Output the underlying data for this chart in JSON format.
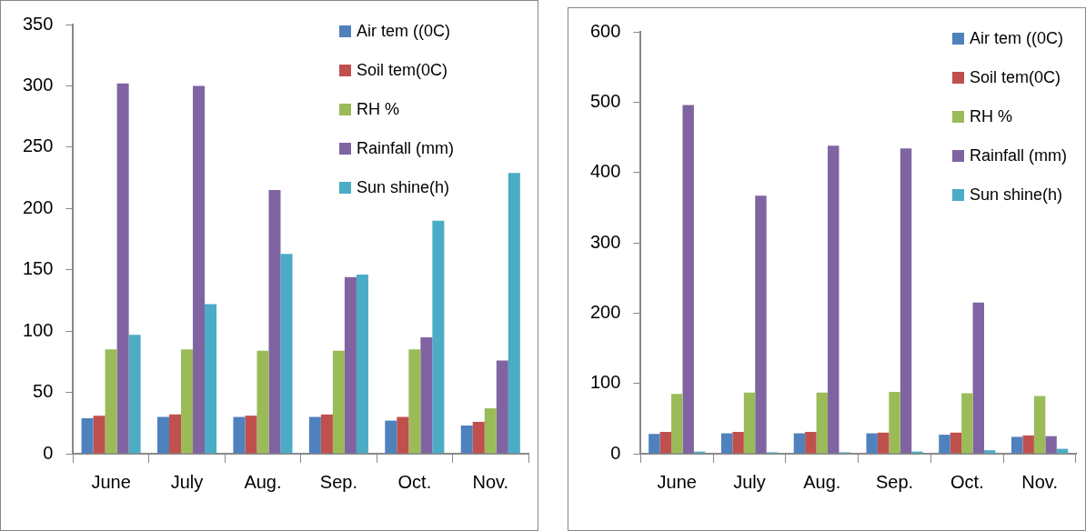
{
  "chart_data": [
    {
      "type": "bar",
      "categories": [
        "June",
        "July",
        "Aug.",
        "Sep.",
        "Oct.",
        "Nov."
      ],
      "ylim": [
        0,
        350
      ],
      "yticks": [
        0,
        50,
        100,
        150,
        200,
        250,
        300,
        350
      ],
      "grid": false,
      "legend": "top right",
      "series": [
        {
          "name": "Air tem ((0C)",
          "color": "#4f81bd",
          "values": [
            29,
            30,
            30,
            30,
            27,
            23
          ]
        },
        {
          "name": "Soil tem(0C)",
          "color": "#c0504d",
          "values": [
            31,
            32,
            31,
            32,
            30,
            26
          ]
        },
        {
          "name": "RH %",
          "color": "#9bbb59",
          "values": [
            85,
            85,
            84,
            84,
            85,
            37
          ]
        },
        {
          "name": "Rainfall (mm)",
          "color": "#8064a2",
          "values": [
            302,
            300,
            215,
            144,
            95,
            76
          ]
        },
        {
          "name": "Sun shine(h)",
          "color": "#4bacc6",
          "values": [
            97,
            122,
            163,
            146,
            190,
            229
          ]
        }
      ]
    },
    {
      "type": "bar",
      "categories": [
        "June",
        "July",
        "Aug.",
        "Sep.",
        "Oct.",
        "Nov."
      ],
      "ylim": [
        0,
        600
      ],
      "yticks": [
        0,
        100,
        200,
        300,
        400,
        500,
        600
      ],
      "grid": false,
      "legend": "top right",
      "series": [
        {
          "name": "Air tem ((0C)",
          "color": "#4f81bd",
          "values": [
            28,
            29,
            29,
            29,
            27,
            24
          ]
        },
        {
          "name": "Soil tem(0C)",
          "color": "#c0504d",
          "values": [
            31,
            31,
            31,
            30,
            30,
            26
          ]
        },
        {
          "name": "RH %",
          "color": "#9bbb59",
          "values": [
            85,
            87,
            87,
            88,
            86,
            82
          ]
        },
        {
          "name": "Rainfall (mm)",
          "color": "#8064a2",
          "values": [
            496,
            367,
            438,
            434,
            215,
            25
          ]
        },
        {
          "name": "Sun shine(h)",
          "color": "#4bacc6",
          "values": [
            3,
            2,
            2,
            3,
            5,
            7
          ]
        }
      ]
    }
  ]
}
